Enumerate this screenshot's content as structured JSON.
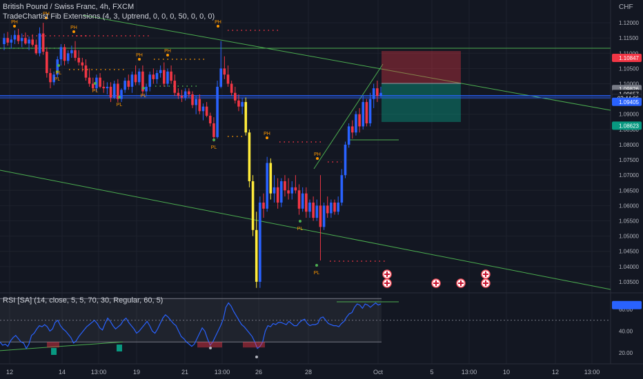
{
  "header": {
    "symbol": "British Pound / Swiss Franc, 4h, FXCM",
    "indicator": "TradeChartist Fib Extensions (4, 3, Uptrend, 0, 0, 0, 50, 0, 0, 0)",
    "currency": "CHF"
  },
  "colors": {
    "background": "#131722",
    "bull_candle": "#2962ff",
    "bear_candle": "#f23645",
    "yellow_candle": "#ffeb3b",
    "trendline": "#4caf50",
    "rsi_line": "#2962ff",
    "pivot_high": "#ff9800",
    "pivot_low": "#4caf50"
  },
  "price_axis": {
    "ticks": [
      "1.12000",
      "1.11500",
      "1.11000",
      "1.10500",
      "1.10000",
      "1.09500",
      "1.09000",
      "1.08500",
      "1.08000",
      "1.07500",
      "1.07000",
      "1.06500",
      "1.06000",
      "1.05500",
      "1.05000",
      "1.04500",
      "1.04000",
      "1.03500"
    ],
    "badges": [
      {
        "text": "1.10847",
        "value": 1.10847,
        "color": "#f23645"
      },
      {
        "text": "1.09826",
        "value": 1.09826,
        "color": "#787b86"
      },
      {
        "text": "1.09657",
        "value": 1.09657,
        "color": "#131722"
      },
      {
        "text": "02:44:06",
        "value": 1.0952,
        "color": "#131722"
      },
      {
        "text": "1.09405",
        "value": 1.09405,
        "color": "#2962ff"
      },
      {
        "text": "1.08623",
        "value": 1.08623,
        "color": "#089981"
      }
    ]
  },
  "time_axis": {
    "labels": [
      "12",
      "14",
      "13:00",
      "19",
      "21",
      "13:00",
      "26",
      "28",
      "Oct",
      "5",
      "13:00",
      "10",
      "12",
      "13:00"
    ]
  },
  "rsi": {
    "title": "RSI [SA] (14, close, 5, 5, 70, 30, Regular, 60, 5)",
    "ticks": [
      "60.00",
      "40.00",
      "20.00"
    ],
    "values": [
      30,
      27,
      28,
      26,
      31,
      34,
      36,
      33,
      30,
      29,
      24,
      28,
      36,
      38,
      42,
      45,
      44,
      46,
      44,
      40,
      42,
      48,
      50,
      45,
      42,
      40,
      37,
      34,
      29,
      31,
      35,
      38,
      41,
      44,
      46,
      48,
      50,
      47,
      43,
      41,
      47,
      52,
      49,
      45,
      42,
      44,
      46,
      50,
      52,
      48,
      45,
      42,
      38,
      40,
      43,
      46,
      49,
      45,
      40,
      38,
      42,
      47,
      52,
      55,
      53,
      50,
      47,
      45,
      40,
      35,
      33,
      30,
      28,
      26,
      28,
      33,
      38,
      43,
      40,
      33,
      27,
      30,
      35,
      40,
      45,
      51,
      62,
      66,
      63,
      58,
      54,
      50,
      46,
      44,
      41,
      38,
      35,
      30,
      24,
      26,
      30,
      40,
      45,
      44,
      47,
      46,
      48,
      48,
      47,
      46,
      49,
      47,
      45,
      45,
      48,
      50,
      51,
      47,
      45,
      46,
      46,
      47,
      52,
      53,
      50,
      47,
      46,
      45,
      45,
      44,
      47,
      49,
      53,
      56,
      57,
      62,
      65,
      64,
      61,
      65,
      64,
      62,
      64,
      66,
      64,
      65
    ]
  },
  "pivots": [
    {
      "text": "PH",
      "type": "high"
    },
    {
      "text": "PL",
      "type": "low"
    },
    {
      "text": "PH",
      "type": "high"
    },
    {
      "text": "PL",
      "type": "low"
    },
    {
      "text": "PH",
      "type": "high"
    },
    {
      "text": "PL",
      "type": "low"
    },
    {
      "text": "PH",
      "type": "high"
    },
    {
      "text": "PL",
      "type": "low"
    },
    {
      "text": "PH",
      "type": "high"
    },
    {
      "text": "PL",
      "type": "low"
    },
    {
      "text": "PH",
      "type": "high"
    },
    {
      "text": "PL",
      "type": "low"
    },
    {
      "text": "PH",
      "type": "high"
    },
    {
      "text": "PL",
      "type": "low"
    },
    {
      "text": "PH",
      "type": "high"
    },
    {
      "text": "PL",
      "type": "low"
    }
  ],
  "chart_data": {
    "type": "candlestick",
    "symbol": "GBPCHF",
    "timeframe": "4h",
    "ylim": [
      1.0325,
      1.1225
    ],
    "ohlc": [
      [
        1.113,
        1.1165,
        1.111,
        1.115
      ],
      [
        1.115,
        1.117,
        1.1125,
        1.1135
      ],
      [
        1.1135,
        1.116,
        1.1115,
        1.1145
      ],
      [
        1.1145,
        1.1175,
        1.113,
        1.116
      ],
      [
        1.116,
        1.118,
        1.113,
        1.114
      ],
      [
        1.114,
        1.1165,
        1.112,
        1.115
      ],
      [
        1.115,
        1.1168,
        1.1128,
        1.1132
      ],
      [
        1.1132,
        1.1155,
        1.111,
        1.1145
      ],
      [
        1.1145,
        1.1162,
        1.1122,
        1.1128
      ],
      [
        1.1128,
        1.1145,
        1.1095,
        1.11
      ],
      [
        1.11,
        1.1185,
        1.109,
        1.1165
      ],
      [
        1.1165,
        1.12,
        1.1095,
        1.1105
      ],
      [
        1.1105,
        1.112,
        1.102,
        1.1035
      ],
      [
        1.1035,
        1.105,
        1.0985,
        1.1005
      ],
      [
        1.1005,
        1.104,
        1.0995,
        1.103
      ],
      [
        1.103,
        1.109,
        1.102,
        1.108
      ],
      [
        1.108,
        1.113,
        1.106,
        1.112
      ],
      [
        1.112,
        1.113,
        1.106,
        1.1075
      ],
      [
        1.1075,
        1.111,
        1.1065,
        1.11
      ],
      [
        1.11,
        1.1125,
        1.1085,
        1.111
      ],
      [
        1.111,
        1.114,
        1.1075,
        1.1085
      ],
      [
        1.1085,
        1.111,
        1.106,
        1.107
      ],
      [
        1.107,
        1.1085,
        1.104,
        1.106
      ],
      [
        1.106,
        1.108,
        1.101,
        1.102
      ],
      [
        1.102,
        1.105,
        1.099,
        1.1
      ],
      [
        1.1,
        1.102,
        1.0975,
        1.0985
      ],
      [
        1.0985,
        1.103,
        1.0975,
        1.102
      ],
      [
        1.102,
        1.1035,
        1.0985,
        1.099
      ],
      [
        1.099,
        1.101,
        1.097,
        1.0985
      ],
      [
        1.0985,
        1.1005,
        1.0965,
        1.099
      ],
      [
        1.099,
        1.1005,
        1.094,
        1.0955
      ],
      [
        1.0955,
        1.101,
        1.095,
        1.1
      ],
      [
        1.1,
        1.1015,
        1.094,
        1.095
      ],
      [
        1.095,
        1.0985,
        1.094,
        1.098
      ],
      [
        1.098,
        1.102,
        1.097,
        1.101
      ],
      [
        1.101,
        1.103,
        1.098,
        1.099
      ],
      [
        1.099,
        1.104,
        1.097,
        1.103
      ],
      [
        1.103,
        1.106,
        1.0995,
        1.1005
      ],
      [
        1.1005,
        1.105,
        1.0995,
        1.104
      ],
      [
        1.104,
        1.106,
        1.096,
        1.0975
      ],
      [
        1.0975,
        1.1,
        1.096,
        1.099
      ],
      [
        1.099,
        1.104,
        1.0975,
        1.103
      ],
      [
        1.103,
        1.105,
        1.1,
        1.1015
      ],
      [
        1.1015,
        1.1045,
        1.1,
        1.1035
      ],
      [
        1.1035,
        1.106,
        1.102,
        1.1045
      ],
      [
        1.1045,
        1.107,
        1.099,
        1.1
      ],
      [
        1.1,
        1.105,
        1.099,
        1.104
      ],
      [
        1.104,
        1.106,
        1.1,
        1.101
      ],
      [
        1.101,
        1.103,
        1.096,
        1.097
      ],
      [
        1.097,
        1.0985,
        1.095,
        1.096
      ],
      [
        1.096,
        1.098,
        1.094,
        1.0955
      ],
      [
        1.0955,
        1.0985,
        1.0945,
        1.0975
      ],
      [
        1.0975,
        1.0985,
        1.0955,
        1.0965
      ],
      [
        1.0965,
        1.0975,
        1.092,
        1.093
      ],
      [
        1.093,
        1.096,
        1.09,
        1.095
      ],
      [
        1.095,
        1.0965,
        1.09,
        1.091
      ],
      [
        1.091,
        1.0935,
        1.088,
        1.0925
      ],
      [
        1.0925,
        1.094,
        1.089,
        1.0895
      ],
      [
        1.0895,
        1.0905,
        1.086,
        1.087
      ],
      [
        1.087,
        1.089,
        1.081,
        1.0825
      ],
      [
        1.0825,
        1.101,
        1.082,
        1.099
      ],
      [
        1.099,
        1.114,
        1.0985,
        1.105
      ],
      [
        1.105,
        1.109,
        1.1015,
        1.103
      ],
      [
        1.103,
        1.106,
        1.099,
        1.1
      ],
      [
        1.1,
        1.101,
        1.096,
        1.097
      ],
      [
        1.097,
        1.099,
        1.0935,
        1.0945
      ],
      [
        1.0945,
        1.0965,
        1.091,
        1.0925
      ],
      [
        1.0925,
        1.0955,
        1.09,
        1.094
      ],
      [
        1.094,
        1.0955,
        1.083,
        1.084
      ],
      [
        1.084,
        1.085,
        1.066,
        1.068
      ],
      [
        1.068,
        1.07,
        1.05,
        1.052
      ],
      [
        1.052,
        1.058,
        1.033,
        1.035
      ],
      [
        1.035,
        1.063,
        1.033,
        1.061
      ],
      [
        1.061,
        1.064,
        1.056,
        1.059
      ],
      [
        1.059,
        1.076,
        1.058,
        1.074
      ],
      [
        1.074,
        1.0755,
        1.062,
        1.064
      ],
      [
        1.064,
        1.07,
        1.061,
        1.066
      ],
      [
        1.066,
        1.069,
        1.059,
        1.061
      ],
      [
        1.061,
        1.069,
        1.0595,
        1.068
      ],
      [
        1.068,
        1.07,
        1.063,
        1.065
      ],
      [
        1.065,
        1.069,
        1.062,
        1.064
      ],
      [
        1.064,
        1.068,
        1.062,
        1.066
      ],
      [
        1.066,
        1.07,
        1.064,
        1.065
      ],
      [
        1.065,
        1.067,
        1.057,
        1.059
      ],
      [
        1.059,
        1.066,
        1.058,
        1.064
      ],
      [
        1.064,
        1.066,
        1.056,
        1.058
      ],
      [
        1.058,
        1.062,
        1.056,
        1.061
      ],
      [
        1.061,
        1.063,
        1.055,
        1.056
      ],
      [
        1.056,
        1.062,
        1.055,
        1.06
      ],
      [
        1.06,
        1.07,
        1.042,
        1.053
      ],
      [
        1.053,
        1.061,
        1.052,
        1.06
      ],
      [
        1.06,
        1.063,
        1.056,
        1.0575
      ],
      [
        1.0575,
        1.062,
        1.056,
        1.061
      ],
      [
        1.061,
        1.062,
        1.057,
        1.058
      ],
      [
        1.058,
        1.063,
        1.057,
        1.061
      ],
      [
        1.061,
        1.072,
        1.06,
        1.07
      ],
      [
        1.07,
        1.081,
        1.069,
        1.08
      ],
      [
        1.08,
        1.087,
        1.079,
        1.086
      ],
      [
        1.086,
        1.088,
        1.082,
        1.084
      ],
      [
        1.084,
        1.091,
        1.083,
        1.09
      ],
      [
        1.09,
        1.092,
        1.084,
        1.086
      ],
      [
        1.086,
        1.096,
        1.085,
        1.094
      ],
      [
        1.094,
        1.095,
        1.086,
        1.087
      ],
      [
        1.087,
        1.097,
        1.086,
        1.095
      ],
      [
        1.095,
        1.1,
        1.092,
        1.0985
      ],
      [
        1.0985,
        1.101,
        1.094,
        1.096
      ],
      [
        1.096,
        1.099,
        1.0955,
        1.097
      ]
    ]
  }
}
